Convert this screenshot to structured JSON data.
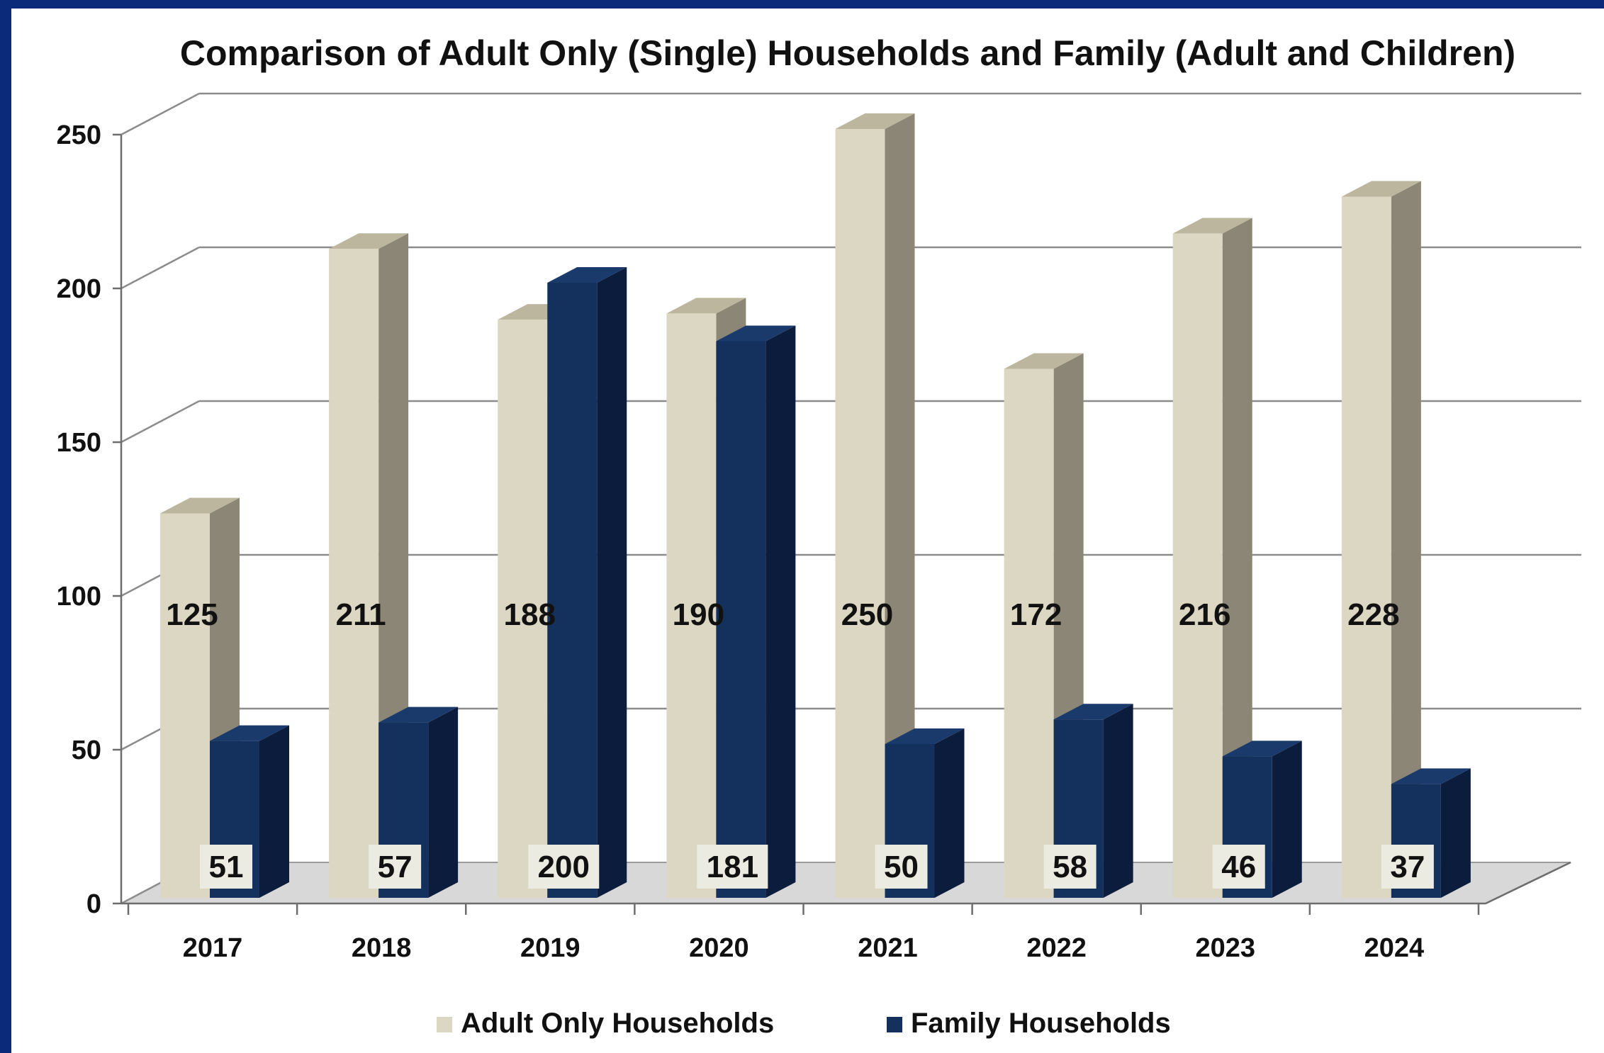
{
  "chart_data": {
    "type": "bar",
    "title": "Comparison of Adult Only (Single) Households and Family (Adult and Children)",
    "categories": [
      "2017",
      "2018",
      "2019",
      "2020",
      "2021",
      "2022",
      "2023",
      "2024"
    ],
    "series": [
      {
        "name": "Adult Only Households",
        "values": [
          125,
          211,
          188,
          190,
          250,
          172,
          216,
          228
        ],
        "color": "#dcd7c3"
      },
      {
        "name": "Family Households",
        "values": [
          51,
          57,
          200,
          181,
          50,
          58,
          46,
          37
        ],
        "color": "#14305c"
      }
    ],
    "ylim": [
      0,
      250
    ],
    "yticks": [
      0,
      50,
      100,
      150,
      200,
      250
    ],
    "xlabel": "",
    "ylabel": "",
    "grid": true,
    "legend_position": "bottom",
    "style": "3d-clustered-column"
  }
}
